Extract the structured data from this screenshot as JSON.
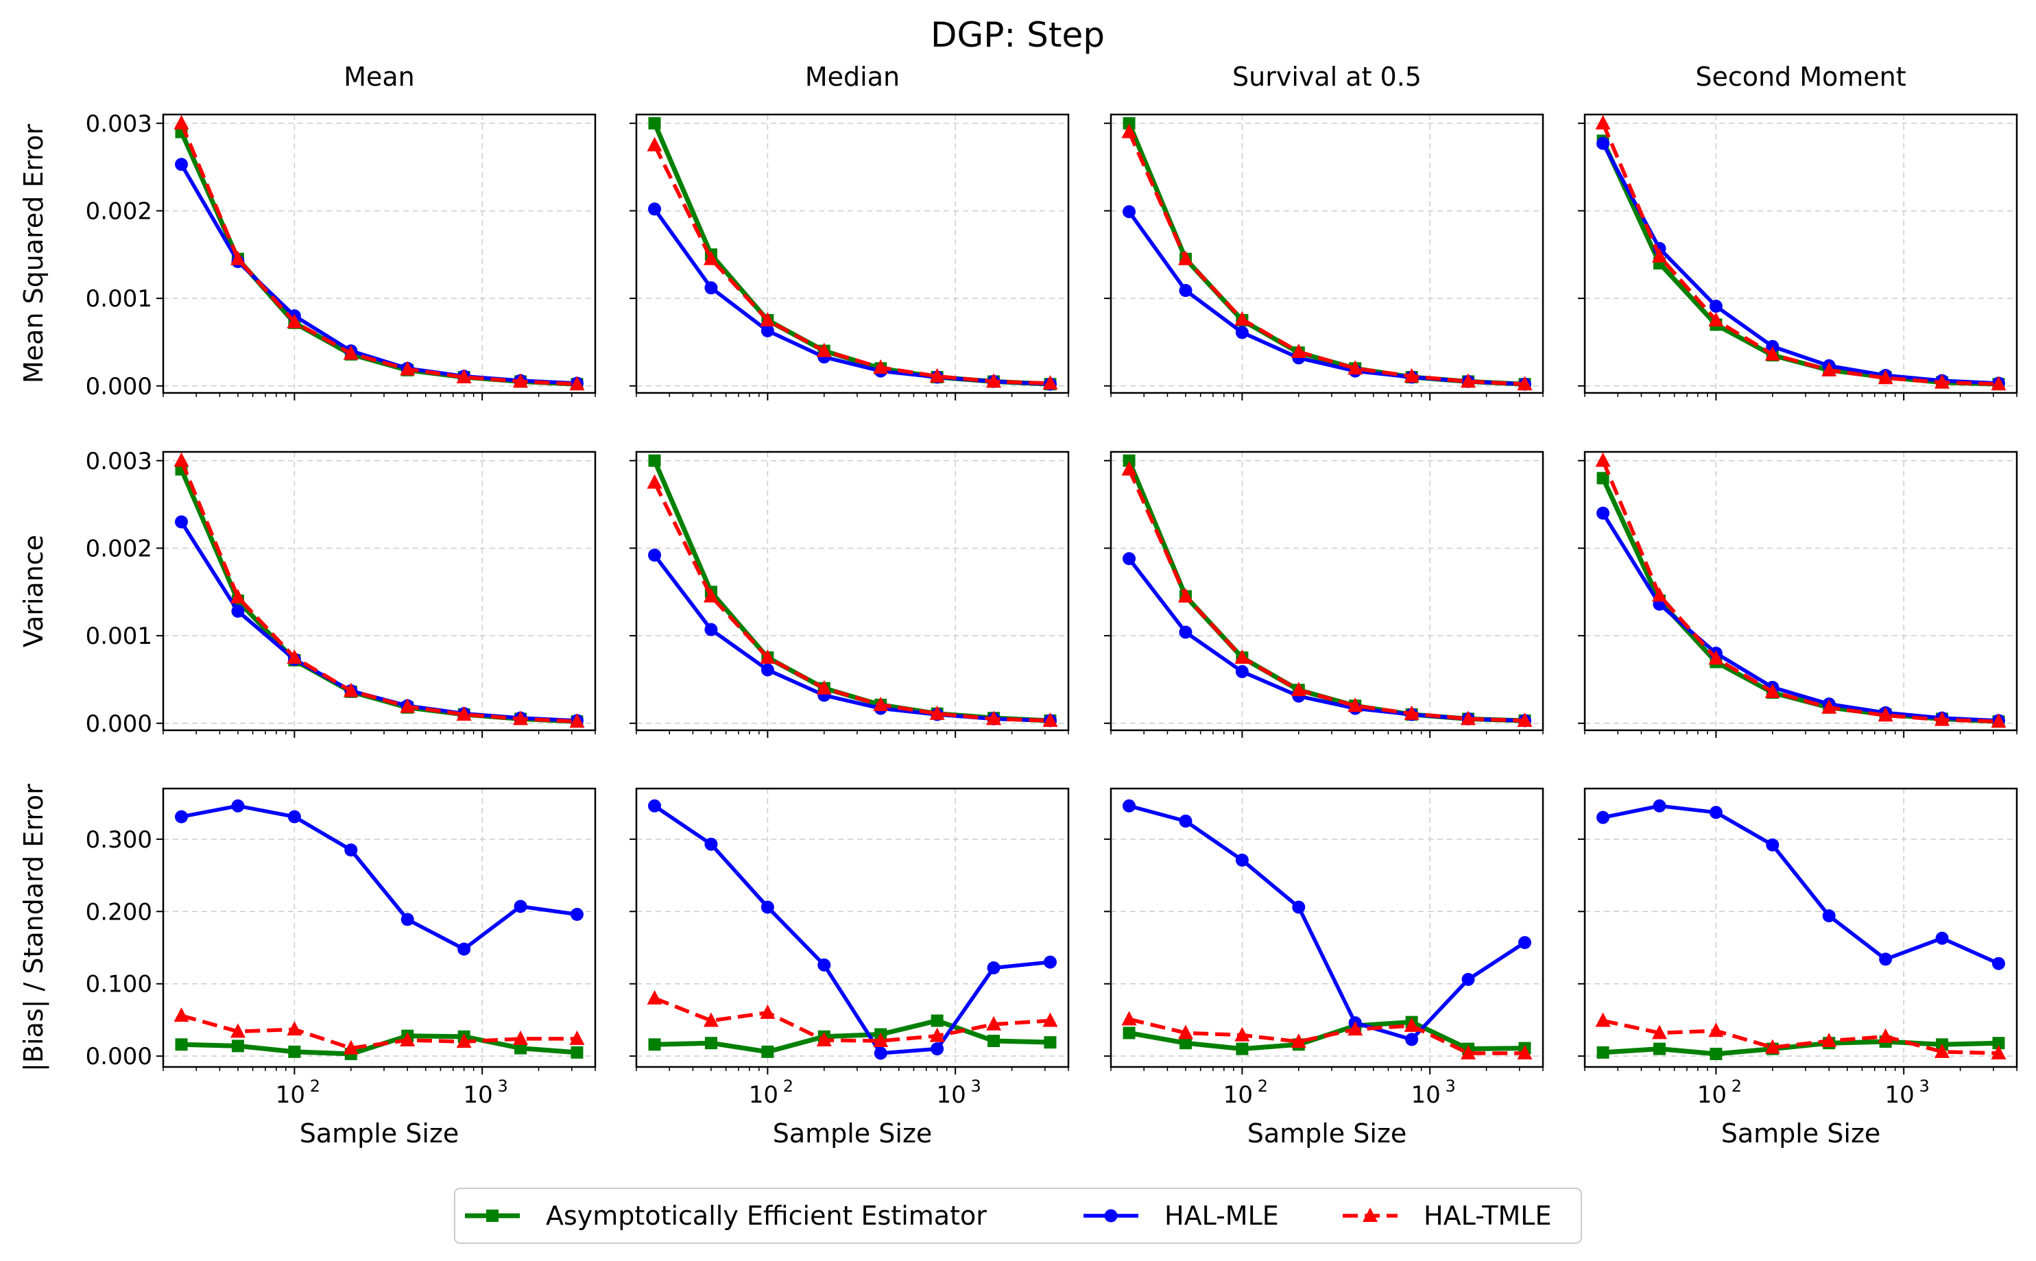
{
  "figure": {
    "title": "DGP: Step",
    "xlabel": "Sample Size",
    "x_tick_labels": [
      "10",
      "10"
    ],
    "x_tick_exponents": [
      "2",
      "3"
    ],
    "columns": [
      "Mean",
      "Median",
      "Survival at 0.5",
      "Second Moment"
    ],
    "row_labels": [
      "Mean Squared Error",
      "Variance",
      "|Bias| / Standard Error"
    ],
    "y_tick_labels": [
      [
        "0.000",
        "0.001",
        "0.002",
        "0.003"
      ],
      [
        "0.000",
        "0.001",
        "0.002",
        "0.003"
      ],
      [
        "0.000",
        "0.100",
        "0.200",
        "0.300"
      ]
    ]
  },
  "legend": {
    "items": [
      {
        "label": "Asymptotically Efficient Estimator",
        "color": "#008000",
        "marker": "square",
        "dash": "solid"
      },
      {
        "label": "HAL-MLE",
        "color": "#0000ff",
        "marker": "circle",
        "dash": "solid"
      },
      {
        "label": "HAL-TMLE",
        "color": "#ff0000",
        "marker": "triangle",
        "dash": "dashed"
      }
    ]
  },
  "chart_data": {
    "type": "line",
    "x_scale": "log",
    "x": [
      25,
      50,
      100,
      200,
      400,
      800,
      1600,
      3200
    ],
    "xlim": [
      20,
      4000
    ],
    "panels": [
      {
        "row": "Mean Squared Error",
        "column": "Mean",
        "ylim": [
          -8e-05,
          0.0031
        ],
        "yticks": [
          0,
          0.001,
          0.002,
          0.003
        ],
        "series": [
          {
            "name": "Asymptotically Efficient Estimator",
            "values": [
              0.0029,
              0.00145,
              0.00072,
              0.00036,
              0.00018,
              0.0001,
              5e-05,
              2e-05
            ]
          },
          {
            "name": "HAL-MLE",
            "values": [
              0.00253,
              0.00142,
              0.0008,
              0.0004,
              0.0002,
              0.00011,
              6e-05,
              3e-05
            ]
          },
          {
            "name": "HAL-TMLE",
            "values": [
              0.003,
              0.00145,
              0.00073,
              0.00037,
              0.00019,
              0.0001,
              5e-05,
              2e-05
            ]
          }
        ]
      },
      {
        "row": "Mean Squared Error",
        "column": "Median",
        "ylim": [
          -8e-05,
          0.0031
        ],
        "yticks": [
          0,
          0.001,
          0.002,
          0.003
        ],
        "series": [
          {
            "name": "Asymptotically Efficient Estimator",
            "values": [
              0.003,
              0.0015,
              0.00075,
              0.0004,
              0.0002,
              0.0001,
              5e-05,
              2e-05
            ]
          },
          {
            "name": "HAL-MLE",
            "values": [
              0.00202,
              0.00112,
              0.00063,
              0.00033,
              0.00017,
              0.0001,
              5e-05,
              2e-05
            ]
          },
          {
            "name": "HAL-TMLE",
            "values": [
              0.00275,
              0.00145,
              0.00075,
              0.0004,
              0.00021,
              0.00011,
              5e-05,
              3e-05
            ]
          }
        ]
      },
      {
        "row": "Mean Squared Error",
        "column": "Survival at 0.5",
        "ylim": [
          -8e-05,
          0.0031
        ],
        "yticks": [
          0,
          0.001,
          0.002,
          0.003
        ],
        "series": [
          {
            "name": "Asymptotically Efficient Estimator",
            "values": [
              0.003,
              0.00145,
              0.00075,
              0.00038,
              0.0002,
              0.0001,
              5e-05,
              2e-05
            ]
          },
          {
            "name": "HAL-MLE",
            "values": [
              0.00199,
              0.00109,
              0.00061,
              0.00032,
              0.00017,
              0.0001,
              5e-05,
              2e-05
            ]
          },
          {
            "name": "HAL-TMLE",
            "values": [
              0.0029,
              0.00145,
              0.00076,
              0.00039,
              0.0002,
              0.00011,
              5e-05,
              2e-05
            ]
          }
        ]
      },
      {
        "row": "Mean Squared Error",
        "column": "Second Moment",
        "ylim": [
          -8e-05,
          0.0031
        ],
        "yticks": [
          0,
          0.001,
          0.002,
          0.003
        ],
        "series": [
          {
            "name": "Asymptotically Efficient Estimator",
            "values": [
              0.0028,
              0.0014,
              0.0007,
              0.00035,
              0.00018,
              0.0001,
              4e-05,
              2e-05
            ]
          },
          {
            "name": "HAL-MLE",
            "values": [
              0.00277,
              0.00157,
              0.00091,
              0.00045,
              0.00023,
              0.00012,
              6e-05,
              3e-05
            ]
          },
          {
            "name": "HAL-TMLE",
            "values": [
              0.003,
              0.00148,
              0.00075,
              0.00036,
              0.00018,
              9e-05,
              4e-05,
              2e-05
            ]
          }
        ]
      },
      {
        "row": "Variance",
        "column": "Mean",
        "ylim": [
          -8e-05,
          0.0031
        ],
        "yticks": [
          0,
          0.001,
          0.002,
          0.003
        ],
        "series": [
          {
            "name": "Asymptotically Efficient Estimator",
            "values": [
              0.0029,
              0.0014,
              0.00072,
              0.00036,
              0.00018,
              0.0001,
              5e-05,
              2e-05
            ]
          },
          {
            "name": "HAL-MLE",
            "values": [
              0.0023,
              0.00128,
              0.00073,
              0.00037,
              0.0002,
              0.00011,
              6e-05,
              3e-05
            ]
          },
          {
            "name": "HAL-TMLE",
            "values": [
              0.003,
              0.00144,
              0.00075,
              0.00037,
              0.00019,
              0.0001,
              5e-05,
              2e-05
            ]
          }
        ]
      },
      {
        "row": "Variance",
        "column": "Median",
        "ylim": [
          -8e-05,
          0.0031
        ],
        "yticks": [
          0,
          0.001,
          0.002,
          0.003
        ],
        "series": [
          {
            "name": "Asymptotically Efficient Estimator",
            "values": [
              0.003,
              0.0015,
              0.00075,
              0.0004,
              0.00021,
              0.00011,
              6e-05,
              3e-05
            ]
          },
          {
            "name": "HAL-MLE",
            "values": [
              0.00192,
              0.00107,
              0.00061,
              0.00032,
              0.00017,
              0.0001,
              5e-05,
              3e-05
            ]
          },
          {
            "name": "HAL-TMLE",
            "values": [
              0.00275,
              0.00145,
              0.00075,
              0.0004,
              0.00021,
              0.00011,
              5e-05,
              3e-05
            ]
          }
        ]
      },
      {
        "row": "Variance",
        "column": "Survival at 0.5",
        "ylim": [
          -8e-05,
          0.0031
        ],
        "yticks": [
          0,
          0.001,
          0.002,
          0.003
        ],
        "series": [
          {
            "name": "Asymptotically Efficient Estimator",
            "values": [
              0.003,
              0.00145,
              0.00075,
              0.00038,
              0.0002,
              0.0001,
              5e-05,
              3e-05
            ]
          },
          {
            "name": "HAL-MLE",
            "values": [
              0.00188,
              0.00104,
              0.00059,
              0.00031,
              0.00017,
              0.0001,
              5e-05,
              3e-05
            ]
          },
          {
            "name": "HAL-TMLE",
            "values": [
              0.0029,
              0.00145,
              0.00075,
              0.00038,
              0.0002,
              0.00011,
              5e-05,
              3e-05
            ]
          }
        ]
      },
      {
        "row": "Variance",
        "column": "Second Moment",
        "ylim": [
          -8e-05,
          0.0031
        ],
        "yticks": [
          0,
          0.001,
          0.002,
          0.003
        ],
        "series": [
          {
            "name": "Asymptotically Efficient Estimator",
            "values": [
              0.0028,
              0.0014,
              0.0007,
              0.00035,
              0.00018,
              0.0001,
              5e-05,
              2e-05
            ]
          },
          {
            "name": "HAL-MLE",
            "values": [
              0.0024,
              0.00136,
              0.0008,
              0.00041,
              0.00022,
              0.00012,
              6e-05,
              3e-05
            ]
          },
          {
            "name": "HAL-TMLE",
            "values": [
              0.003,
              0.00146,
              0.00074,
              0.00036,
              0.00018,
              9e-05,
              4e-05,
              2e-05
            ]
          }
        ]
      },
      {
        "row": "|Bias| / Standard Error",
        "column": "Mean",
        "ylim": [
          -0.015,
          0.37
        ],
        "yticks": [
          0,
          0.1,
          0.2,
          0.3
        ],
        "series": [
          {
            "name": "Asymptotically Efficient Estimator",
            "values": [
              0.016,
              0.014,
              0.006,
              0.003,
              0.028,
              0.027,
              0.011,
              0.005
            ]
          },
          {
            "name": "HAL-MLE",
            "values": [
              0.331,
              0.346,
              0.331,
              0.285,
              0.189,
              0.148,
              0.207,
              0.196
            ]
          },
          {
            "name": "HAL-TMLE",
            "values": [
              0.056,
              0.034,
              0.037,
              0.011,
              0.022,
              0.02,
              0.024,
              0.024
            ]
          }
        ]
      },
      {
        "row": "|Bias| / Standard Error",
        "column": "Median",
        "ylim": [
          -0.015,
          0.37
        ],
        "yticks": [
          0,
          0.1,
          0.2,
          0.3
        ],
        "series": [
          {
            "name": "Asymptotically Efficient Estimator",
            "values": [
              0.016,
              0.018,
              0.006,
              0.027,
              0.03,
              0.049,
              0.021,
              0.019
            ]
          },
          {
            "name": "HAL-MLE",
            "values": [
              0.346,
              0.293,
              0.206,
              0.126,
              0.004,
              0.01,
              0.122,
              0.13
            ]
          },
          {
            "name": "HAL-TMLE",
            "values": [
              0.08,
              0.049,
              0.06,
              0.022,
              0.021,
              0.028,
              0.044,
              0.049
            ]
          }
        ]
      },
      {
        "row": "|Bias| / Standard Error",
        "column": "Survival at 0.5",
        "ylim": [
          -0.015,
          0.37
        ],
        "yticks": [
          0,
          0.1,
          0.2,
          0.3
        ],
        "series": [
          {
            "name": "Asymptotically Efficient Estimator",
            "values": [
              0.032,
              0.018,
              0.01,
              0.016,
              0.042,
              0.047,
              0.01,
              0.011
            ]
          },
          {
            "name": "HAL-MLE",
            "values": [
              0.346,
              0.325,
              0.271,
              0.206,
              0.046,
              0.023,
              0.106,
              0.157
            ]
          },
          {
            "name": "HAL-TMLE",
            "values": [
              0.051,
              0.032,
              0.029,
              0.02,
              0.037,
              0.042,
              0.004,
              0.004
            ]
          }
        ]
      },
      {
        "row": "|Bias| / Standard Error",
        "column": "Second Moment",
        "ylim": [
          -0.015,
          0.37
        ],
        "yticks": [
          0,
          0.1,
          0.2,
          0.3
        ],
        "series": [
          {
            "name": "Asymptotically Efficient Estimator",
            "values": [
              0.005,
              0.01,
              0.003,
              0.01,
              0.018,
              0.02,
              0.016,
              0.018
            ]
          },
          {
            "name": "HAL-MLE",
            "values": [
              0.33,
              0.346,
              0.337,
              0.292,
              0.194,
              0.134,
              0.163,
              0.128
            ]
          },
          {
            "name": "HAL-TMLE",
            "values": [
              0.049,
              0.032,
              0.035,
              0.012,
              0.021,
              0.027,
              0.006,
              0.004
            ]
          }
        ]
      }
    ]
  }
}
